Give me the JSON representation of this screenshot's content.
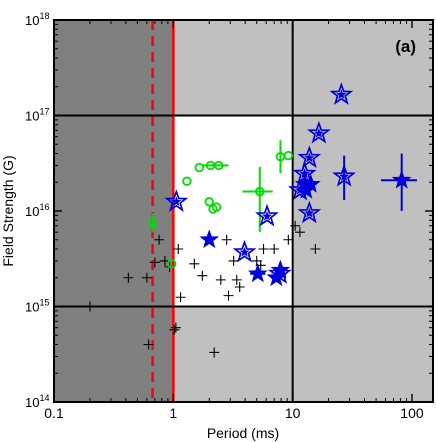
{
  "chart_data": {
    "type": "scatter",
    "panel_label": "(a)",
    "xlabel": "Period (ms)",
    "ylabel": "Field Strength (G)",
    "xscale": "log",
    "yscale": "log",
    "xlim": [
      0.1,
      150
    ],
    "ylim": [
      100000000000000.0,
      1e+18
    ],
    "x_ticks": [
      {
        "value": 0.1,
        "label": "0.1"
      },
      {
        "value": 1,
        "label": "1"
      },
      {
        "value": 10,
        "label": "10"
      },
      {
        "value": 100,
        "label": "100"
      }
    ],
    "y_ticks": [
      {
        "value": 100000000000000.0,
        "base": "10",
        "exp": "14"
      },
      {
        "value": 1000000000000000.0,
        "base": "10",
        "exp": "15"
      },
      {
        "value": 1e+16,
        "base": "10",
        "exp": "16"
      },
      {
        "value": 1e+17,
        "base": "10",
        "exp": "17"
      },
      {
        "value": 1e+18,
        "base": "10",
        "exp": "18"
      }
    ],
    "regions": [
      {
        "x": [
          0.1,
          1
        ],
        "y": [
          100000000000000.0,
          1e+18
        ],
        "color": "#808080"
      },
      {
        "x": [
          1,
          150
        ],
        "y": [
          100000000000000.0,
          1e+18
        ],
        "color": "#c0c0c0"
      },
      {
        "x": [
          1,
          10
        ],
        "y": [
          1000000000000000.0,
          1e+17
        ],
        "color": "#ffffff"
      }
    ],
    "reference_lines": [
      {
        "orientation": "vertical",
        "value": 1,
        "color": "#ff0000",
        "style": "solid"
      },
      {
        "orientation": "vertical",
        "value": 0.67,
        "color": "#ff0000",
        "style": "dashed"
      },
      {
        "orientation": "vertical",
        "value": 10,
        "color": "#000000",
        "style": "solid"
      },
      {
        "orientation": "horizontal",
        "value": 1000000000000000.0,
        "color": "#000000",
        "style": "solid"
      },
      {
        "orientation": "horizontal",
        "value": 1e+17,
        "color": "#000000",
        "style": "solid"
      }
    ],
    "series": [
      {
        "marker": "plus",
        "color": "#000000",
        "points": [
          {
            "x": 0.2,
            "y": 1000000000000000.0
          },
          {
            "x": 0.42,
            "y": 2000000000000000.0
          },
          {
            "x": 0.6,
            "y": 2000000000000000.0
          },
          {
            "x": 0.62,
            "y": 400000000000000.0
          },
          {
            "x": 0.7,
            "y": 2900000000000000.0
          },
          {
            "x": 0.76,
            "y": 5000000000000000.0
          },
          {
            "x": 0.85,
            "y": 3000000000000000.0
          },
          {
            "x": 0.93,
            "y": 2600000000000000.0
          },
          {
            "x": 1.02,
            "y": 570000000000000.0
          },
          {
            "x": 1.05,
            "y": 600000000000000.0
          },
          {
            "x": 1.1,
            "y": 4000000000000000.0
          },
          {
            "x": 1.15,
            "y": 1250000000000000.0
          },
          {
            "x": 1.5,
            "y": 2800000000000000.0
          },
          {
            "x": 1.75,
            "y": 2100000000000000.0
          },
          {
            "x": 2.2,
            "y": 330000000000000.0
          },
          {
            "x": 2.5,
            "y": 1900000000000000.0
          },
          {
            "x": 2.8,
            "y": 5000000000000000.0
          },
          {
            "x": 2.9,
            "y": 1300000000000000.0
          },
          {
            "x": 3.2,
            "y": 3000000000000000.0
          },
          {
            "x": 3.4,
            "y": 1900000000000000.0
          },
          {
            "x": 3.6,
            "y": 1600000000000000.0
          },
          {
            "x": 5.0,
            "y": 3000000000000000.0
          },
          {
            "x": 5.4,
            "y": 2700000000000000.0
          },
          {
            "x": 5.7,
            "y": 4000000000000000.0
          },
          {
            "x": 7.0,
            "y": 4000000000000000.0
          },
          {
            "x": 9.2,
            "y": 5000000000000000.0
          },
          {
            "x": 10.5,
            "y": 7000000000000000.0
          },
          {
            "x": 11.5,
            "y": 6000000000000000.0
          },
          {
            "x": 15.5,
            "y": 4000000000000000.0
          }
        ]
      },
      {
        "marker": "circle-error",
        "color": "#00dd00",
        "points": [
          {
            "x": 0.67,
            "y": 7500000000000000.0,
            "y_err": [
              6000000000000000.0,
              9500000000000000.0
            ]
          },
          {
            "x": 0.97,
            "y": 2800000000000000.0
          },
          {
            "x": 1.3,
            "y": 2.05e+16
          },
          {
            "x": 1.65,
            "y": 2.85e+16
          },
          {
            "x": 2.05,
            "y": 3e+16,
            "x_err": [
              1.75,
              2.9
            ]
          },
          {
            "x": 2.4,
            "y": 3e+16
          },
          {
            "x": 2.0,
            "y": 1.25e+16
          },
          {
            "x": 2.15,
            "y": 1.05e+16
          },
          {
            "x": 2.3,
            "y": 1.1e+16
          },
          {
            "x": 5.3,
            "y": 1.6e+16,
            "y_err": [
              6000000000000000.0,
              2.9e+16
            ],
            "x_err": [
              3.8,
              6.8
            ]
          },
          {
            "x": 7.9,
            "y": 3.7e+16,
            "y_err": [
              2.5e+16,
              5.5e+16
            ]
          },
          {
            "x": 9.2,
            "y": 3.8e+16
          }
        ]
      },
      {
        "marker": "star-filled",
        "color": "#0000dd",
        "points": [
          {
            "x": 2.0,
            "y": 5000000000000000.0
          },
          {
            "x": 5.1,
            "y": 2200000000000000.0,
            "x_err": [
              4.4,
              5.9
            ]
          },
          {
            "x": 7.3,
            "y": 2000000000000000.0,
            "x_err": [
              6.7,
              8.0
            ]
          },
          {
            "x": 7.9,
            "y": 2400000000000000.0
          },
          {
            "x": 12.6,
            "y": 1.9e+16
          },
          {
            "x": 13.0,
            "y": 1.65e+16
          },
          {
            "x": 14.2,
            "y": 1.9e+16
          },
          {
            "x": 82,
            "y": 2.1e+16,
            "y_err": [
              1e+16,
              4e+16
            ],
            "x_err": [
              55,
              110
            ]
          }
        ]
      },
      {
        "marker": "star-open",
        "color": "#0000dd",
        "points": [
          {
            "x": 1.06,
            "y": 1.25e+16
          },
          {
            "x": 3.95,
            "y": 3700000000000000.0
          },
          {
            "x": 6.1,
            "y": 8800000000000000.0
          },
          {
            "x": 7.8,
            "y": 2200000000000000.0
          },
          {
            "x": 11.5,
            "y": 1.65e+16
          },
          {
            "x": 12.6,
            "y": 2.45e+16
          },
          {
            "x": 13.8,
            "y": 9500000000000000.0
          },
          {
            "x": 13.8,
            "y": 3.6e+16
          },
          {
            "x": 16.6,
            "y": 6.5e+16
          },
          {
            "x": 25.6,
            "y": 1.65e+17
          },
          {
            "x": 27,
            "y": 2.3e+16,
            "y_err": [
              1.3e+16,
              3.8e+16
            ]
          }
        ]
      }
    ]
  }
}
